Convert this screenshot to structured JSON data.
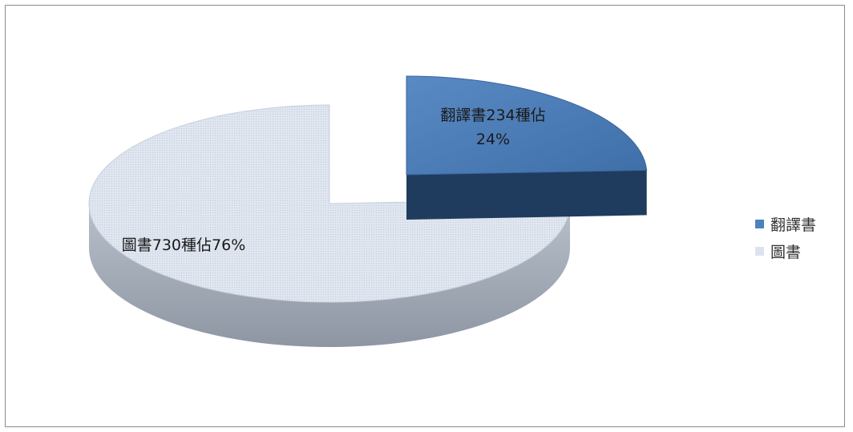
{
  "chart_data": {
    "type": "pie",
    "style": "3d-exploded",
    "title": "",
    "slices": [
      {
        "name": "翻譯書",
        "value": 234,
        "percent": 24,
        "label_lines": [
          "翻譯書234種佔",
          "24%"
        ],
        "color": "#4f81bd",
        "side_color": "#1f3b5e"
      },
      {
        "name": "圖書",
        "value": 730,
        "percent": 76,
        "label_lines": [
          "圖書730種佔76%"
        ],
        "color": "#dce3ee",
        "side_color": "#9aa3b0"
      }
    ],
    "legend": {
      "placement": "right",
      "items": [
        {
          "label": "翻譯書",
          "color": "#4f81bd"
        },
        {
          "label": "圖書",
          "color": "#dce3ee"
        }
      ]
    }
  }
}
